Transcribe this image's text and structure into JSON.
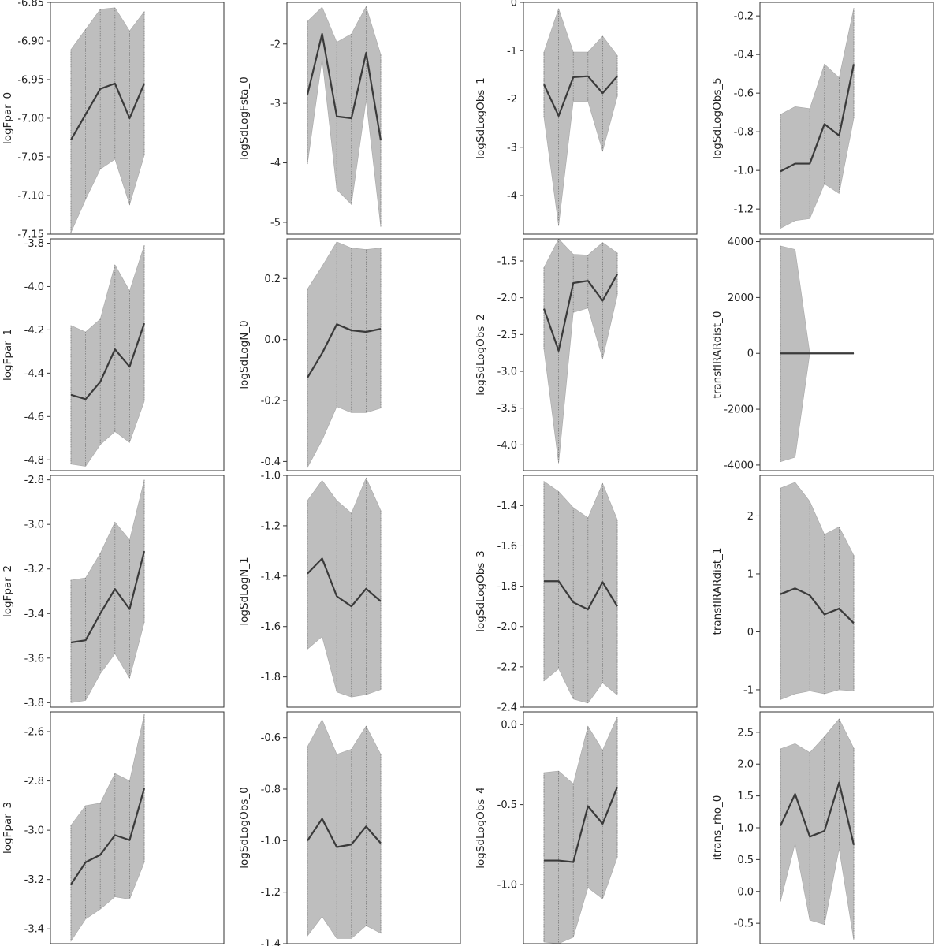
{
  "chart_data": [
    {
      "type": "area",
      "ylabel": "logFpar_0",
      "ylim": [
        -7.15,
        -6.85
      ],
      "ticks": [
        -6.85,
        -6.9,
        -6.95,
        -7.0,
        -7.05,
        -7.1,
        -7.15
      ],
      "tick_labels": [
        "-6.85",
        "-6.90",
        "-6.95",
        "-7.00",
        "-7.05",
        "-7.10",
        "-7.15"
      ],
      "x": [
        1,
        2,
        3,
        4,
        5,
        6
      ],
      "estimate": [
        -7.028,
        -6.995,
        -6.962,
        -6.955,
        -7.0,
        -6.955
      ],
      "lower": [
        -7.148,
        -7.105,
        -7.066,
        -7.053,
        -7.112,
        -7.048
      ],
      "upper": [
        -6.911,
        -6.885,
        -6.859,
        -6.857,
        -6.887,
        -6.862
      ]
    },
    {
      "type": "area",
      "ylabel": "logSdLogFsta_0",
      "ylim": [
        -5.2,
        -1.3
      ],
      "ticks": [
        -2,
        -3,
        -4,
        -5
      ],
      "tick_labels": [
        "-2",
        "-3",
        "-4",
        "-5"
      ],
      "x": [
        1,
        2,
        3,
        4,
        5,
        6
      ],
      "estimate": [
        -2.85,
        -1.83,
        -3.22,
        -3.25,
        -2.15,
        -3.62
      ],
      "lower": [
        -4.02,
        -2.25,
        -4.45,
        -4.7,
        -2.95,
        -5.08
      ],
      "upper": [
        -1.62,
        -1.38,
        -1.97,
        -1.83,
        -1.37,
        -2.18
      ]
    },
    {
      "type": "area",
      "ylabel": "logSdLogObs_1",
      "ylim": [
        -4.8,
        0
      ],
      "ticks": [
        0,
        -1,
        -2,
        -3,
        -4
      ],
      "tick_labels": [
        "0",
        "-1",
        "-2",
        "-3",
        "-4"
      ],
      "x": [
        1,
        2,
        3,
        4,
        5,
        6
      ],
      "estimate": [
        -1.7,
        -2.35,
        -1.55,
        -1.53,
        -1.88,
        -1.53
      ],
      "lower": [
        -2.38,
        -4.63,
        -2.05,
        -2.05,
        -3.08,
        -1.95
      ],
      "upper": [
        -1.03,
        -0.13,
        -1.03,
        -1.03,
        -0.7,
        -1.1
      ]
    },
    {
      "type": "area",
      "ylabel": "logSdLogObs_5",
      "ylim": [
        -1.33,
        -0.13
      ],
      "ticks": [
        -0.2,
        -0.4,
        -0.6,
        -0.8,
        -1.0,
        -1.2
      ],
      "tick_labels": [
        "-0.2",
        "-0.4",
        "-0.6",
        "-0.8",
        "-1.0",
        "-1.2"
      ],
      "x": [
        1,
        2,
        3,
        4,
        5,
        6
      ],
      "estimate": [
        -1.005,
        -0.965,
        -0.965,
        -0.76,
        -0.82,
        -0.45
      ],
      "lower": [
        -1.3,
        -1.26,
        -1.25,
        -1.07,
        -1.12,
        -0.73
      ],
      "upper": [
        -0.71,
        -0.67,
        -0.68,
        -0.45,
        -0.52,
        -0.16
      ]
    },
    {
      "type": "area",
      "ylabel": "logFpar_1",
      "ylim": [
        -4.85,
        -3.78
      ],
      "ticks": [
        -3.8,
        -4.0,
        -4.2,
        -4.4,
        -4.6,
        -4.8
      ],
      "tick_labels": [
        "-3.8",
        "-4.0",
        "-4.2",
        "-4.4",
        "-4.6",
        "-4.8"
      ],
      "x": [
        1,
        2,
        3,
        4,
        5,
        6
      ],
      "estimate": [
        -4.5,
        -4.52,
        -4.44,
        -4.29,
        -4.37,
        -4.17
      ],
      "lower": [
        -4.82,
        -4.83,
        -4.73,
        -4.67,
        -4.72,
        -4.53
      ],
      "upper": [
        -4.18,
        -4.21,
        -4.15,
        -3.9,
        -4.02,
        -3.81
      ]
    },
    {
      "type": "area",
      "ylabel": "logSdLogN_0",
      "ylim": [
        -0.43,
        0.33
      ],
      "ticks": [
        0.2,
        0.0,
        -0.2,
        -0.4
      ],
      "tick_labels": [
        "0.2",
        "0.0",
        "-0.2",
        "-0.4"
      ],
      "x": [
        1,
        2,
        3,
        4,
        5,
        6
      ],
      "estimate": [
        -0.125,
        -0.045,
        0.05,
        0.03,
        0.025,
        0.035
      ],
      "lower": [
        -0.42,
        -0.33,
        -0.22,
        -0.24,
        -0.24,
        -0.225
      ],
      "upper": [
        0.165,
        0.24,
        0.32,
        0.3,
        0.295,
        0.3
      ]
    },
    {
      "type": "area",
      "ylabel": "logSdLogObs_2",
      "ylim": [
        -4.35,
        -1.2
      ],
      "ticks": [
        -1.5,
        -2.0,
        -2.5,
        -3.0,
        -3.5,
        -4.0
      ],
      "tick_labels": [
        "-1.5",
        "-2.0",
        "-2.5",
        "-3.0",
        "-3.5",
        "-4.0"
      ],
      "x": [
        1,
        2,
        3,
        4,
        5,
        6
      ],
      "estimate": [
        -2.15,
        -2.72,
        -1.8,
        -1.77,
        -2.04,
        -1.68
      ],
      "lower": [
        -2.7,
        -4.25,
        -2.2,
        -2.14,
        -2.83,
        -1.97
      ],
      "upper": [
        -1.59,
        -1.2,
        -1.41,
        -1.42,
        -1.25,
        -1.39
      ]
    },
    {
      "type": "area",
      "ylabel": "transfIRARdist_0",
      "ylim": [
        -4200,
        4100
      ],
      "ticks": [
        4000,
        2000,
        0,
        -2000,
        -4000
      ],
      "tick_labels": [
        "4000",
        "2000",
        "0",
        "-2000",
        "-4000"
      ],
      "x": [
        1,
        2,
        3,
        4,
        5,
        6
      ],
      "estimate": [
        0,
        0,
        0,
        0,
        0,
        0
      ],
      "lower": [
        -3880,
        -3720,
        0,
        0,
        0,
        0
      ],
      "upper": [
        3850,
        3720,
        0,
        0,
        0,
        0
      ]
    },
    {
      "type": "area",
      "ylabel": "logFpar_2",
      "ylim": [
        -3.82,
        -2.78
      ],
      "ticks": [
        -2.8,
        -3.0,
        -3.2,
        -3.4,
        -3.6,
        -3.8
      ],
      "tick_labels": [
        "-2.8",
        "-3.0",
        "-3.2",
        "-3.4",
        "-3.6",
        "-3.8"
      ],
      "x": [
        1,
        2,
        3,
        4,
        5,
        6
      ],
      "estimate": [
        -3.53,
        -3.52,
        -3.4,
        -3.29,
        -3.38,
        -3.12
      ],
      "lower": [
        -3.8,
        -3.79,
        -3.67,
        -3.58,
        -3.69,
        -3.44
      ],
      "upper": [
        -3.25,
        -3.24,
        -3.13,
        -2.99,
        -3.07,
        -2.8
      ]
    },
    {
      "type": "area",
      "ylabel": "logSdLogN_1",
      "ylim": [
        -1.92,
        -1.0
      ],
      "ticks": [
        -1.0,
        -1.2,
        -1.4,
        -1.6,
        -1.8
      ],
      "tick_labels": [
        "-1.0",
        "-1.2",
        "-1.4",
        "-1.6",
        "-1.8"
      ],
      "x": [
        1,
        2,
        3,
        4,
        5,
        6
      ],
      "estimate": [
        -1.39,
        -1.33,
        -1.48,
        -1.52,
        -1.45,
        -1.5
      ],
      "lower": [
        -1.69,
        -1.64,
        -1.86,
        -1.88,
        -1.87,
        -1.85
      ],
      "upper": [
        -1.1,
        -1.02,
        -1.1,
        -1.15,
        -1.01,
        -1.14
      ]
    },
    {
      "type": "area",
      "ylabel": "logSdLogObs_3",
      "ylim": [
        -2.4,
        -1.25
      ],
      "ticks": [
        -1.4,
        -1.6,
        -1.8,
        -2.0,
        -2.2,
        -2.4
      ],
      "tick_labels": [
        "-1.4",
        "-1.6",
        "-1.8",
        "-2.0",
        "-2.2",
        "-2.4"
      ],
      "x": [
        1,
        2,
        3,
        4,
        5,
        6
      ],
      "estimate": [
        -1.775,
        -1.775,
        -1.88,
        -1.915,
        -1.78,
        -1.9
      ],
      "lower": [
        -2.27,
        -2.21,
        -2.36,
        -2.38,
        -2.28,
        -2.34
      ],
      "upper": [
        -1.28,
        -1.33,
        -1.41,
        -1.46,
        -1.29,
        -1.47
      ]
    },
    {
      "type": "area",
      "ylabel": "transfIRARdist_1",
      "ylim": [
        -1.3,
        2.7
      ],
      "ticks": [
        2,
        1,
        0,
        -1
      ],
      "tick_labels": [
        "2",
        "1",
        "0",
        "-1"
      ],
      "x": [
        1,
        2,
        3,
        4,
        5,
        6
      ],
      "estimate": [
        0.65,
        0.75,
        0.63,
        0.3,
        0.4,
        0.15
      ],
      "lower": [
        -1.17,
        -1.07,
        -1.02,
        -1.07,
        -1.0,
        -1.02
      ],
      "upper": [
        2.48,
        2.58,
        2.25,
        1.68,
        1.81,
        1.32
      ]
    },
    {
      "type": "area",
      "ylabel": "logFpar_3",
      "ylim": [
        -3.46,
        -2.52
      ],
      "ticks": [
        -2.6,
        -2.8,
        -3.0,
        -3.2,
        -3.4
      ],
      "tick_labels": [
        "-2.6",
        "-2.8",
        "-3.0",
        "-3.2",
        "-3.4"
      ],
      "x": [
        1,
        2,
        3,
        4,
        5,
        6
      ],
      "estimate": [
        -3.22,
        -3.13,
        -3.1,
        -3.02,
        -3.04,
        -2.83
      ],
      "lower": [
        -3.45,
        -3.36,
        -3.32,
        -3.27,
        -3.28,
        -3.13
      ],
      "upper": [
        -2.98,
        -2.9,
        -2.89,
        -2.77,
        -2.8,
        -2.53
      ]
    },
    {
      "type": "area",
      "ylabel": "logSdLogObs_0",
      "ylim": [
        -1.4,
        -0.5
      ],
      "ticks": [
        -0.6,
        -0.8,
        -1.0,
        -1.2,
        -1.4
      ],
      "tick_labels": [
        "-0.6",
        "-0.8",
        "-1.0",
        "-1.2",
        "-1.4"
      ],
      "x": [
        1,
        2,
        3,
        4,
        5,
        6
      ],
      "estimate": [
        -1.0,
        -0.915,
        -1.025,
        -1.015,
        -0.945,
        -1.01
      ],
      "lower": [
        -1.37,
        -1.295,
        -1.38,
        -1.38,
        -1.33,
        -1.36
      ],
      "upper": [
        -0.635,
        -0.53,
        -0.665,
        -0.645,
        -0.555,
        -0.665
      ]
    },
    {
      "type": "area",
      "ylabel": "logSdLogObs_4",
      "ylim": [
        -1.37,
        0.08
      ],
      "ticks": [
        0.0,
        -0.5,
        -1.0
      ],
      "tick_labels": [
        "0.0",
        "-0.5",
        "-1.0"
      ],
      "x": [
        1,
        2,
        3,
        4,
        5,
        6
      ],
      "estimate": [
        -0.85,
        -0.85,
        -0.86,
        -0.51,
        -0.62,
        -0.39
      ],
      "lower": [
        -1.36,
        -1.37,
        -1.33,
        -1.02,
        -1.09,
        -0.83
      ],
      "upper": [
        -0.3,
        -0.29,
        -0.37,
        -0.01,
        -0.16,
        0.05
      ]
    },
    {
      "type": "area",
      "ylabel": "itrans_rho_0",
      "ylim": [
        -0.82,
        2.82
      ],
      "ticks": [
        2.5,
        2.0,
        1.5,
        1.0,
        0.5,
        0.0,
        -0.5
      ],
      "tick_labels": [
        "2.5",
        "2.0",
        "1.5",
        "1.0",
        "0.5",
        "0.0",
        "-0.5"
      ],
      "x": [
        1,
        2,
        3,
        4,
        5,
        6
      ],
      "estimate": [
        1.03,
        1.53,
        0.86,
        0.95,
        1.71,
        0.73
      ],
      "lower": [
        -0.16,
        0.75,
        -0.45,
        -0.52,
        0.67,
        -0.77
      ],
      "upper": [
        2.24,
        2.32,
        2.18,
        2.43,
        2.71,
        2.25
      ]
    }
  ]
}
